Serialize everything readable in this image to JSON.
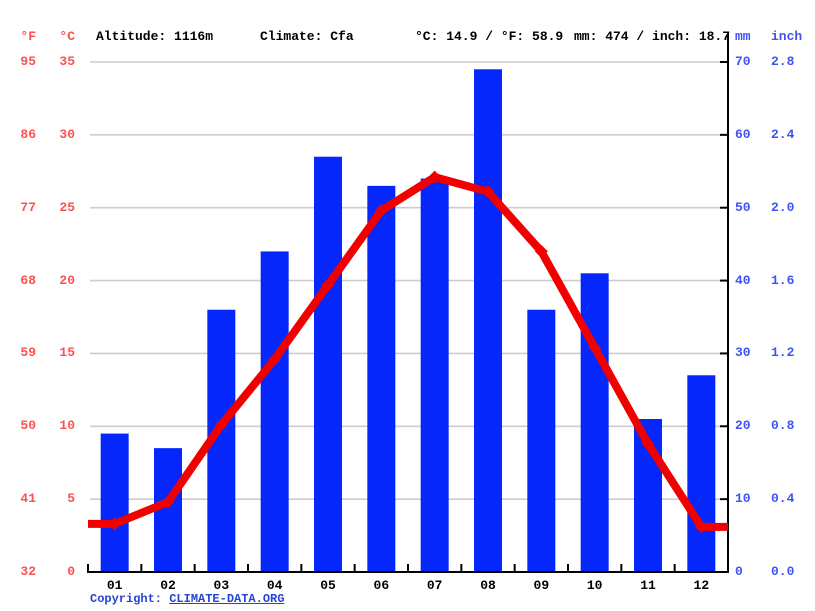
{
  "header": {
    "f_label": "°F",
    "c_label": "°C",
    "altitude": "Altitude: 1116m",
    "climate": "Climate: Cfa",
    "temp_summary": "°C: 14.9 / °F: 58.9",
    "precip_summary": "mm: 474 / inch: 18.7",
    "mm_label": "mm",
    "inch_label": "inch"
  },
  "footer": {
    "copyright_label": "Copyright: ",
    "link_text": "CLIMATE-DATA.ORG"
  },
  "chart_data": {
    "type": "bar+line",
    "title": "",
    "categories": [
      "01",
      "02",
      "03",
      "04",
      "05",
      "06",
      "07",
      "08",
      "09",
      "10",
      "11",
      "12"
    ],
    "series": [
      {
        "name": "precipitation_mm",
        "type": "bar",
        "values": [
          19,
          17,
          36,
          44,
          57,
          53,
          54,
          69,
          36,
          41,
          21,
          27
        ]
      },
      {
        "name": "temperature_c",
        "type": "line",
        "values": [
          3.3,
          4.8,
          10.1,
          14.6,
          19.7,
          24.8,
          27.1,
          26.1,
          22.0,
          15.4,
          8.8,
          3.1
        ]
      }
    ],
    "left_axis": {
      "f_ticks": [
        "95",
        "86",
        "77",
        "68",
        "59",
        "50",
        "41",
        "32"
      ],
      "c_ticks": [
        "35",
        "30",
        "25",
        "20",
        "15",
        "10",
        "5",
        "0"
      ],
      "ylim_c": [
        0,
        35
      ]
    },
    "right_axis": {
      "mm_ticks": [
        "70",
        "60",
        "50",
        "40",
        "30",
        "20",
        "10",
        "0"
      ],
      "inch_ticks": [
        "2.8",
        "2.4",
        "2.0",
        "1.6",
        "1.2",
        "0.8",
        "0.4",
        "0.0"
      ],
      "ylim_mm": [
        0,
        70
      ]
    },
    "grid": true,
    "legend": "none"
  },
  "colors": {
    "bar": "#0627fc",
    "line": "#f20000",
    "red_label": "#fa5252",
    "blue_label": "#4053f3",
    "grid": "#cccccc",
    "axis": "#000000",
    "link": "#2444d4"
  }
}
